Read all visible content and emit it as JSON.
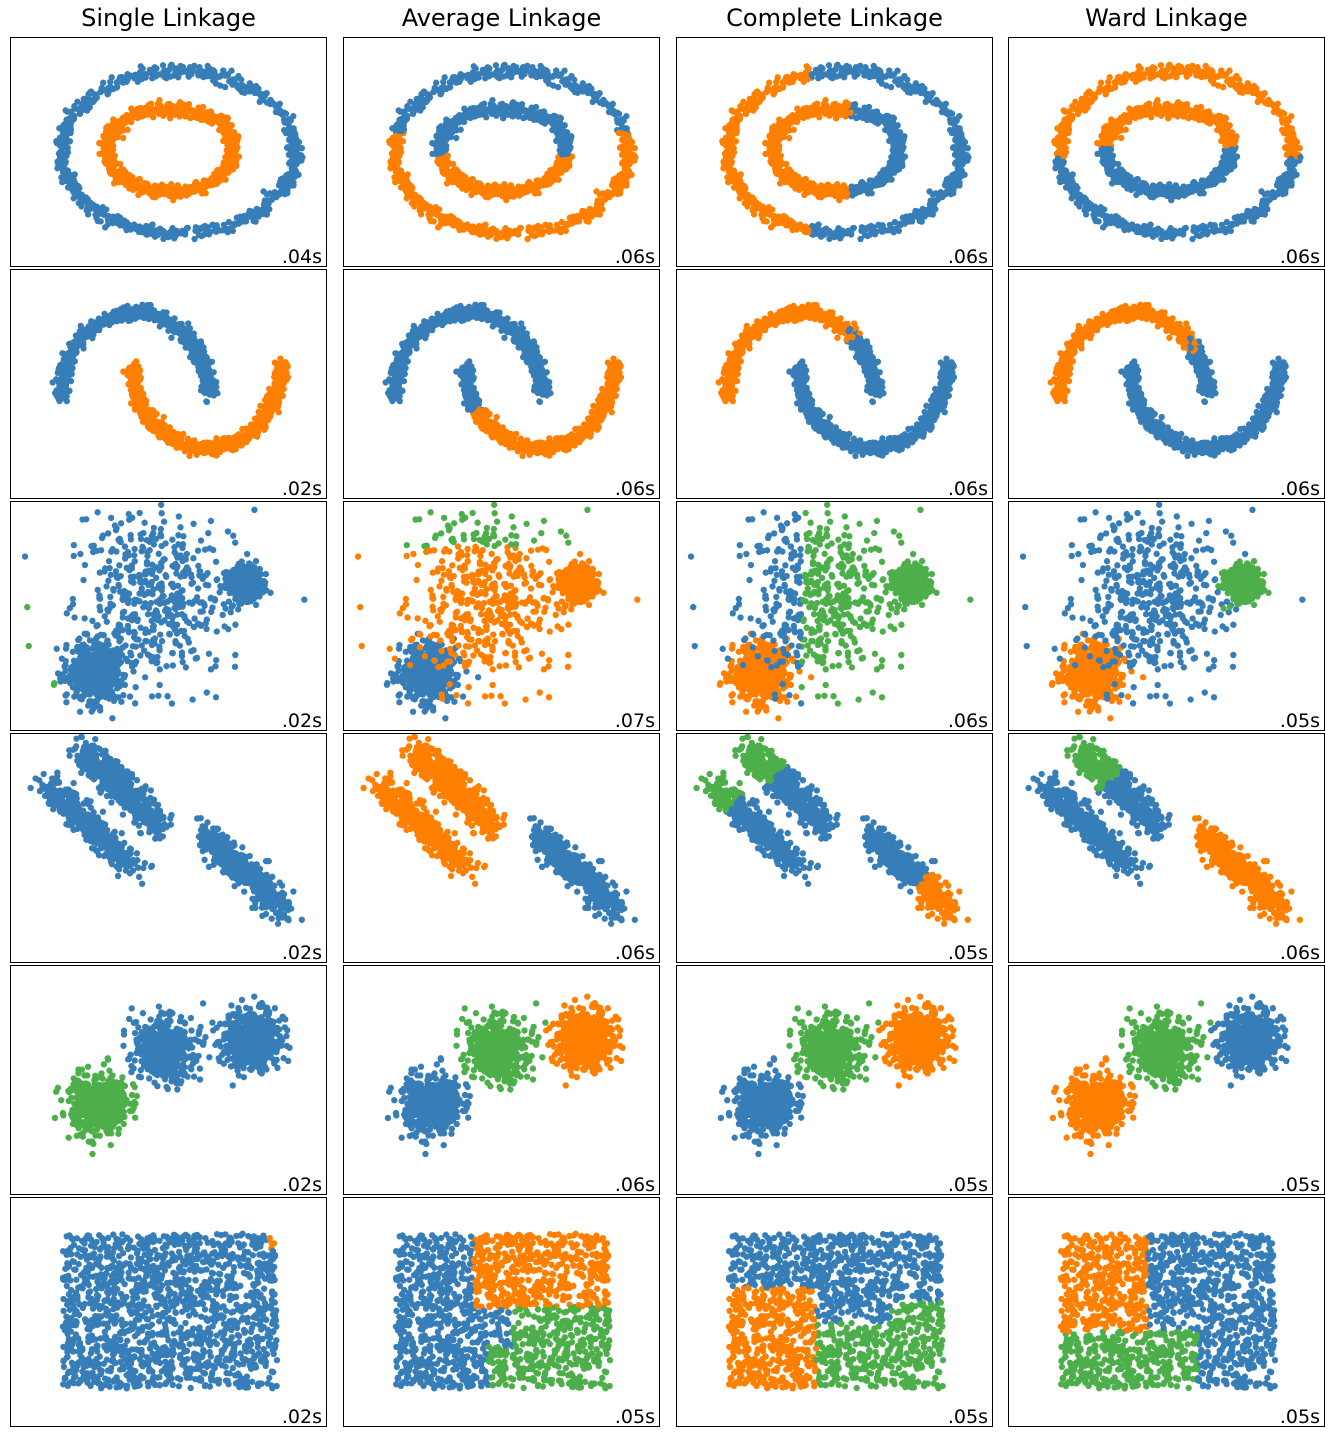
{
  "colors": {
    "cluster_0": "#377eb8",
    "cluster_1": "#ff7f00",
    "cluster_2": "#4daf4a"
  },
  "chart_data": {
    "type": "scatter",
    "grid": false,
    "axes_ticks": false,
    "column_titles": [
      "Single Linkage",
      "Average Linkage",
      "Complete Linkage",
      "Ward Linkage"
    ],
    "rows": [
      {
        "dataset": "noisy_circles",
        "times": [
          ".04s",
          ".06s",
          ".06s",
          ".06s"
        ]
      },
      {
        "dataset": "noisy_moons",
        "times": [
          ".02s",
          ".06s",
          ".06s",
          ".06s"
        ]
      },
      {
        "dataset": "varied",
        "times": [
          ".02s",
          ".07s",
          ".06s",
          ".05s"
        ]
      },
      {
        "dataset": "aniso",
        "times": [
          ".02s",
          ".06s",
          ".05s",
          ".06s"
        ]
      },
      {
        "dataset": "blobs",
        "times": [
          ".02s",
          ".06s",
          ".05s",
          ".05s"
        ]
      },
      {
        "dataset": "no_structure",
        "times": [
          ".02s",
          ".05s",
          ".05s",
          ".05s"
        ]
      }
    ]
  }
}
